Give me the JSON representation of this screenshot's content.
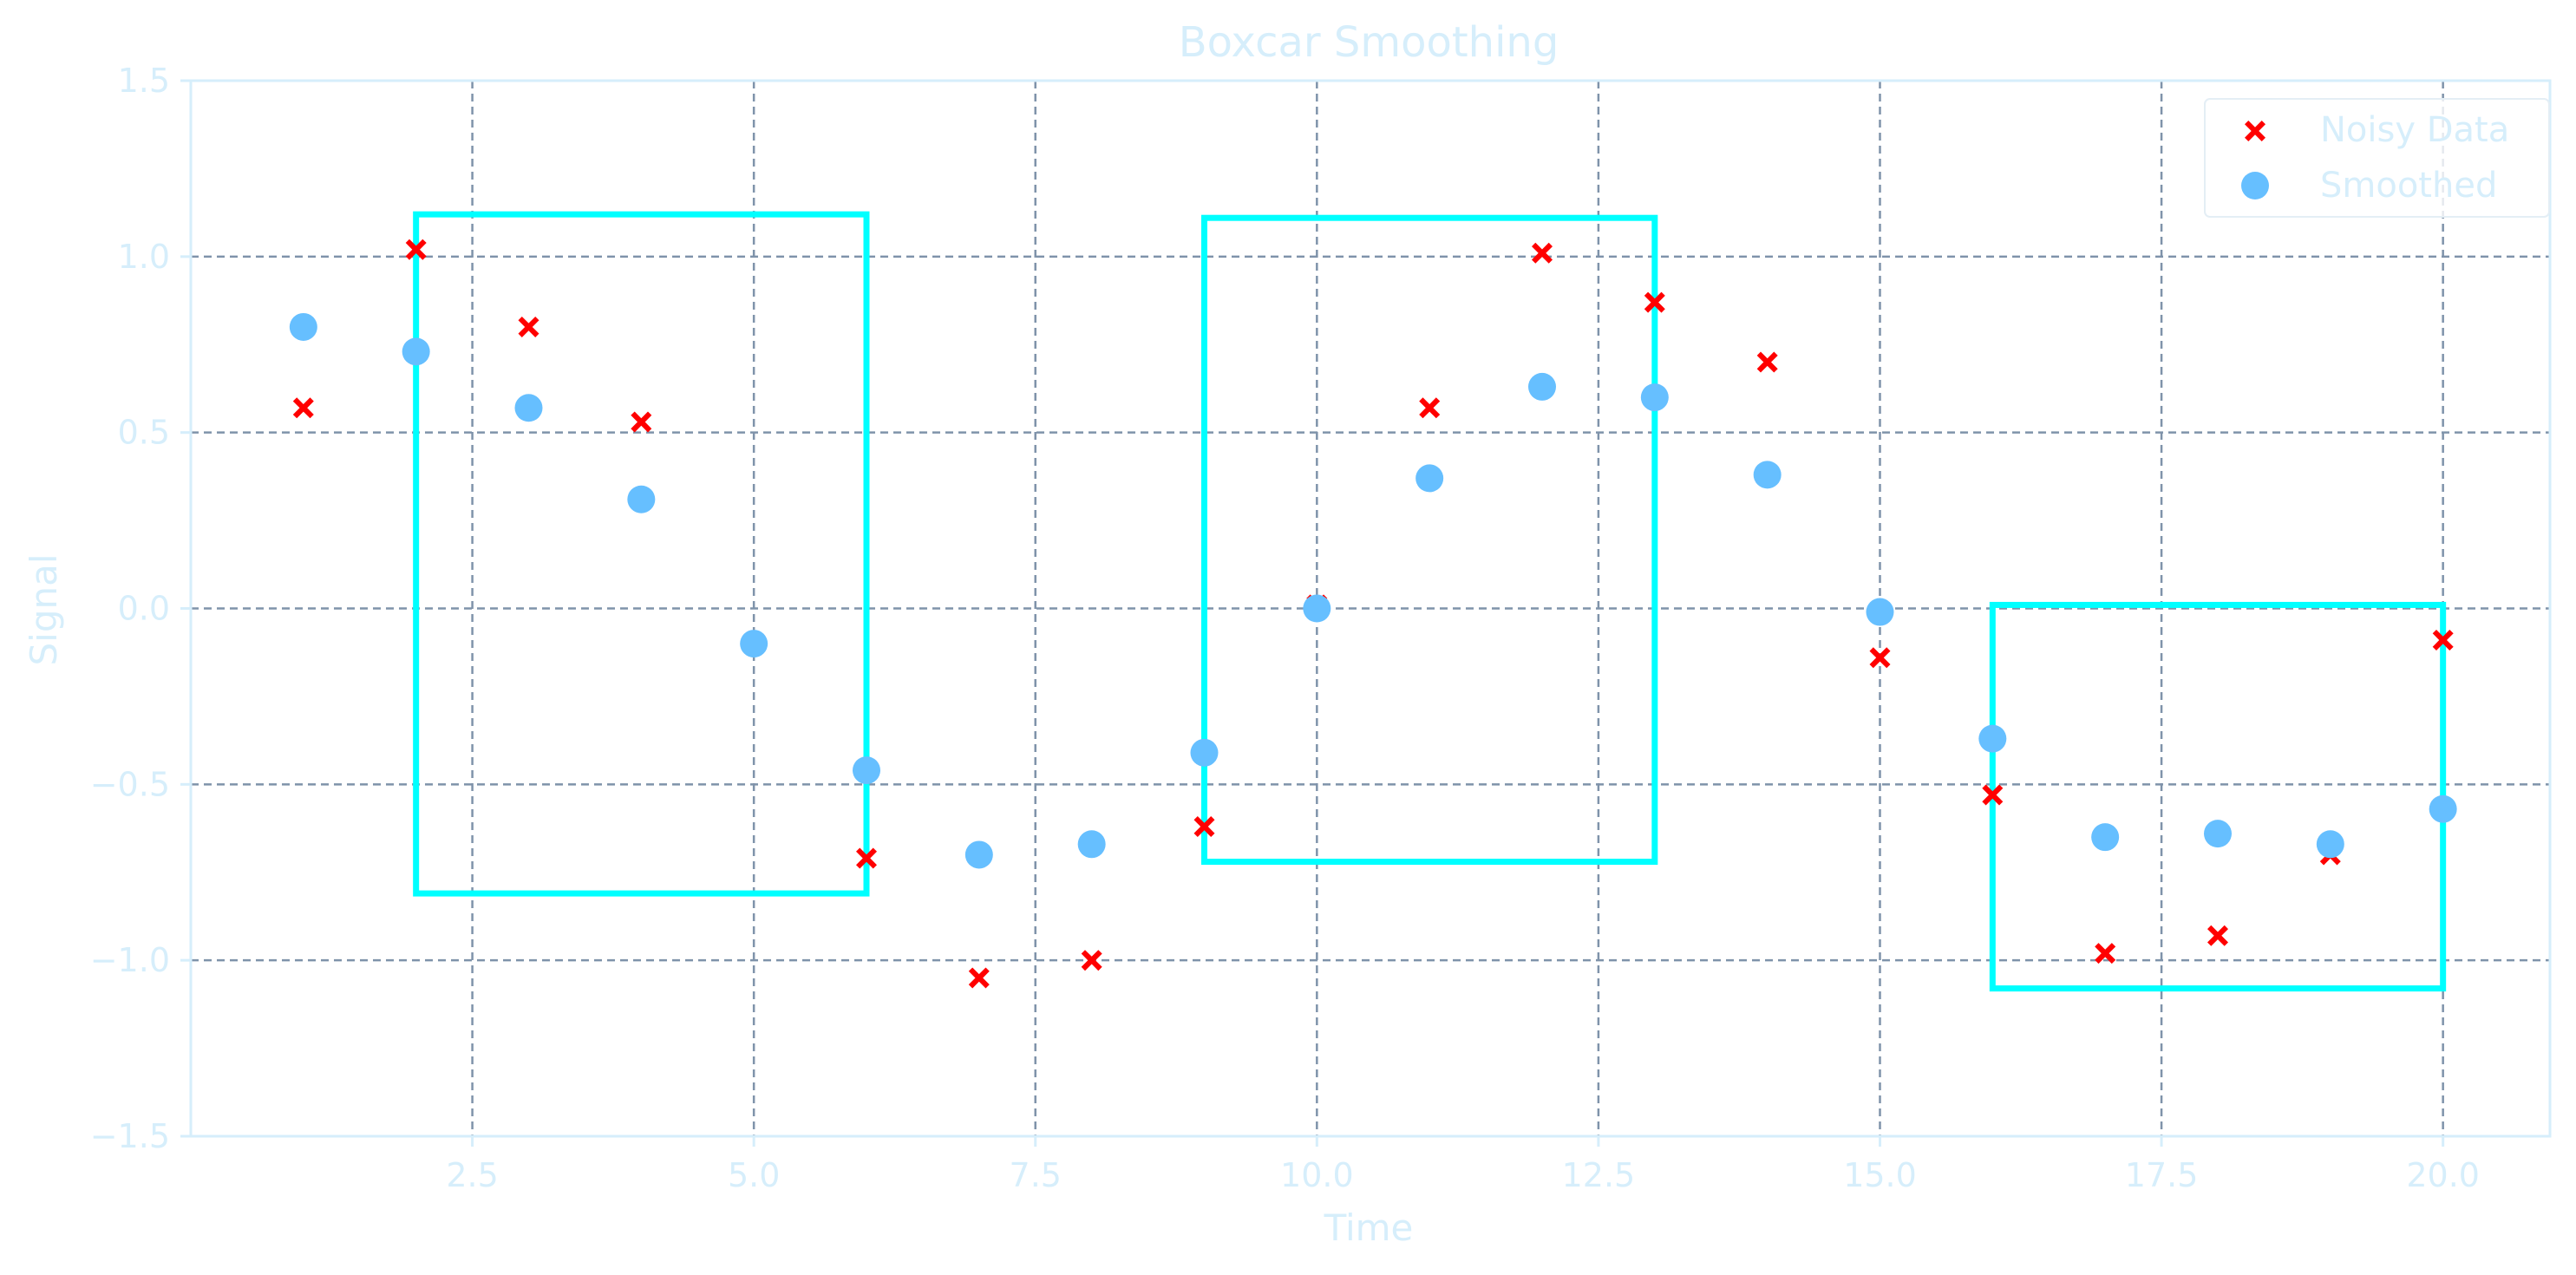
{
  "chart_data": {
    "type": "scatter",
    "title": "Boxcar Smoothing",
    "xlabel": "Time",
    "ylabel": "Signal",
    "xlim": [
      0.0,
      20.95
    ],
    "ylim": [
      -1.5,
      1.5
    ],
    "xticks": [
      2.5,
      5.0,
      7.5,
      10.0,
      12.5,
      15.0,
      17.5,
      20.0
    ],
    "xtick_labels": [
      "2.5",
      "5.0",
      "7.5",
      "10.0",
      "12.5",
      "15.0",
      "17.5",
      "20.0"
    ],
    "yticks": [
      -1.5,
      -1.0,
      -0.5,
      0.0,
      0.5,
      1.0,
      1.5
    ],
    "ytick_labels": [
      "−1.5",
      "−1.0",
      "−0.5",
      "0.0",
      "0.5",
      "1.0",
      "1.5"
    ],
    "grid": true,
    "legend_position": "top-right",
    "series": [
      {
        "name": "Noisy Data",
        "marker": "x-filled",
        "color": "#ff0000",
        "x": [
          1,
          2,
          3,
          4,
          5,
          6,
          7,
          8,
          9,
          10,
          11,
          12,
          13,
          14,
          15,
          16,
          17,
          18,
          19,
          20
        ],
        "y": [
          0.57,
          1.02,
          0.8,
          0.53,
          -0.1,
          -0.71,
          -1.05,
          -1.0,
          -0.62,
          0.01,
          0.57,
          1.01,
          0.87,
          0.7,
          -0.14,
          -0.53,
          -0.98,
          -0.93,
          -0.7,
          -0.09
        ]
      },
      {
        "name": "Smoothed",
        "marker": "circle",
        "color": "#66bfff",
        "x": [
          1,
          2,
          3,
          4,
          5,
          6,
          7,
          8,
          9,
          10,
          11,
          12,
          13,
          14,
          15,
          16,
          17,
          18,
          19,
          20
        ],
        "y": [
          0.8,
          0.73,
          0.57,
          0.31,
          -0.1,
          -0.46,
          -0.7,
          -0.67,
          -0.41,
          0.0,
          0.37,
          0.63,
          0.6,
          0.38,
          -0.01,
          -0.37,
          -0.65,
          -0.64,
          -0.67,
          -0.57
        ]
      }
    ],
    "annotations": [
      {
        "type": "rect",
        "x0": 2.0,
        "x1": 6.0,
        "y0": -0.81,
        "y1": 1.12,
        "color": "#00ffff"
      },
      {
        "type": "rect",
        "x0": 9.0,
        "x1": 13.0,
        "y0": -0.72,
        "y1": 1.11,
        "color": "#00ffff"
      },
      {
        "type": "rect",
        "x0": 16.0,
        "x1": 20.0,
        "y0": -1.08,
        "y1": 0.01,
        "color": "#00ffff"
      }
    ],
    "colors": {
      "text": "#d6eefb",
      "axes": "#d6eefb",
      "grid": "#7f93aa"
    }
  }
}
